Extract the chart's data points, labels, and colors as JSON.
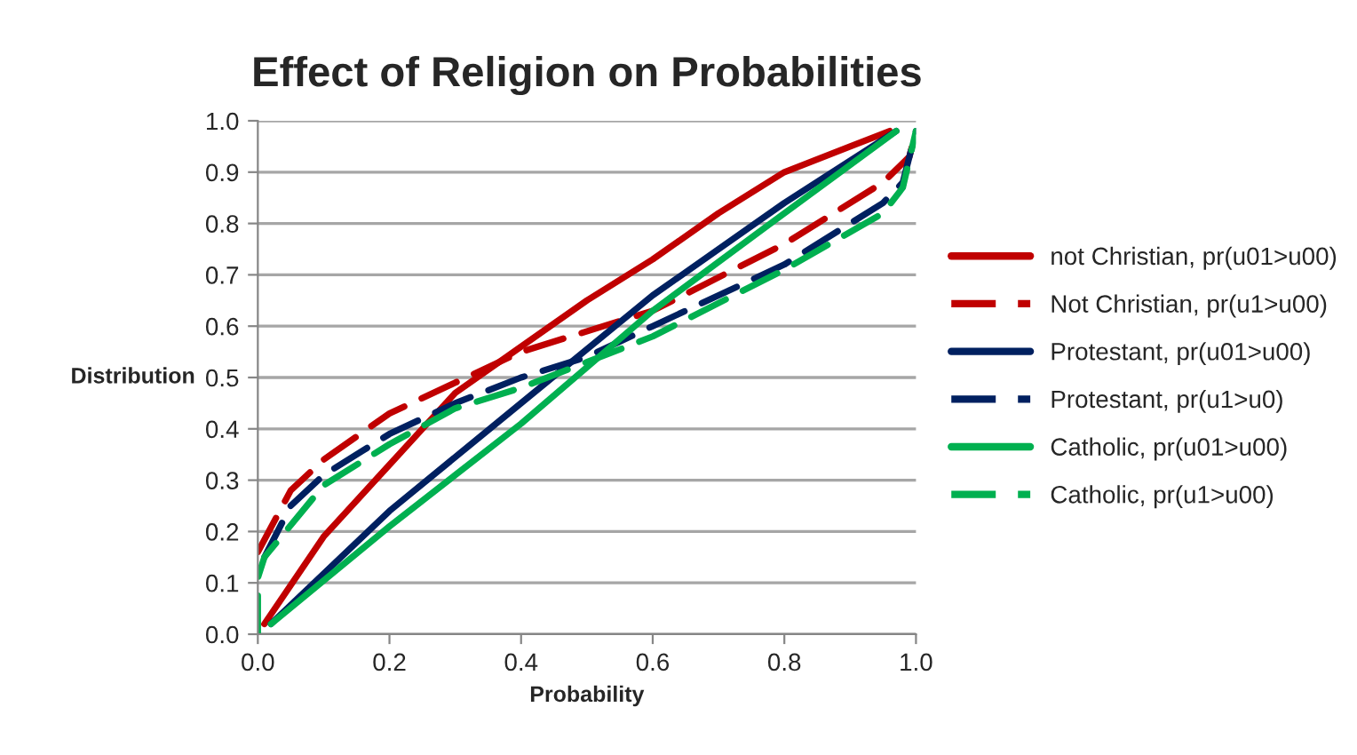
{
  "chart_data": {
    "type": "line",
    "title": "Effect of Religion on Probabilities",
    "xlabel": "Probability",
    "ylabel": "Distribution",
    "xlim": [
      0,
      1
    ],
    "ylim": [
      0,
      1
    ],
    "xticks": [
      {
        "value": 0,
        "label": "0.0"
      },
      {
        "value": 0.2,
        "label": "0.2"
      },
      {
        "value": 0.4,
        "label": "0.4"
      },
      {
        "value": 0.6,
        "label": "0.6"
      },
      {
        "value": 0.8,
        "label": "0.8"
      },
      {
        "value": 1,
        "label": "1.0"
      }
    ],
    "yticks": [
      {
        "value": 0,
        "label": "0.0"
      },
      {
        "value": 0.1,
        "label": "0.1"
      },
      {
        "value": 0.2,
        "label": "0.2"
      },
      {
        "value": 0.3,
        "label": "0.3"
      },
      {
        "value": 0.4,
        "label": "0.4"
      },
      {
        "value": 0.5,
        "label": "0.5"
      },
      {
        "value": 0.6,
        "label": "0.6"
      },
      {
        "value": 0.7,
        "label": "0.7"
      },
      {
        "value": 0.8,
        "label": "0.8"
      },
      {
        "value": 0.9,
        "label": "0.9"
      },
      {
        "value": 1,
        "label": "1.0"
      }
    ],
    "grid": "y",
    "legend": "right",
    "marker": "none",
    "series": [
      {
        "name": "not Christian, pr(u01>u00)",
        "color": "#c00000",
        "line_style": "solid",
        "x": [
          0.01,
          0.1,
          0.2,
          0.3,
          0.4,
          0.5,
          0.6,
          0.7,
          0.8,
          0.9,
          0.96
        ],
        "values": [
          0.02,
          0.19,
          0.33,
          0.47,
          0.56,
          0.65,
          0.73,
          0.82,
          0.9,
          0.95,
          0.98
        ]
      },
      {
        "name": "Not Christian, pr(u1>u00)",
        "color": "#c00000",
        "line_style": "dashed",
        "x": [
          0.0,
          0.05,
          0.1,
          0.2,
          0.3,
          0.4,
          0.6,
          0.8,
          0.95,
          0.99,
          1.0
        ],
        "values": [
          0.16,
          0.28,
          0.34,
          0.43,
          0.49,
          0.55,
          0.63,
          0.76,
          0.88,
          0.93,
          0.98
        ]
      },
      {
        "name": "Protestant, pr(u01>u00)",
        "color": "#002060",
        "line_style": "solid",
        "x": [
          0.02,
          0.2,
          0.4,
          0.6,
          0.8,
          0.97
        ],
        "values": [
          0.02,
          0.24,
          0.45,
          0.66,
          0.84,
          0.98
        ]
      },
      {
        "name": "Protestant, pr(u1>u0)",
        "color": "#002060",
        "line_style": "dashed",
        "x": [
          0.01,
          0.05,
          0.1,
          0.2,
          0.3,
          0.4,
          0.5,
          0.6,
          0.8,
          0.95,
          0.98,
          1.0
        ],
        "values": [
          0.15,
          0.25,
          0.31,
          0.39,
          0.45,
          0.5,
          0.54,
          0.6,
          0.72,
          0.84,
          0.88,
          0.98
        ]
      },
      {
        "name": "Catholic, pr(u01>u00)",
        "color": "#00b050",
        "line_style": "solid",
        "x": [
          0.02,
          0.2,
          0.4,
          0.5,
          0.6,
          0.8,
          0.97
        ],
        "values": [
          0.02,
          0.21,
          0.41,
          0.52,
          0.63,
          0.82,
          0.98
        ]
      },
      {
        "name": "Catholic, pr(u1>u00)",
        "color": "#00b050",
        "line_style": "dashed",
        "x": [
          0.0,
          0.0,
          0.01,
          0.1,
          0.2,
          0.3,
          0.4,
          0.5,
          0.6,
          0.8,
          0.95,
          0.98,
          1.0
        ],
        "values": [
          0.0,
          0.11,
          0.15,
          0.29,
          0.37,
          0.44,
          0.48,
          0.53,
          0.58,
          0.71,
          0.82,
          0.87,
          0.98
        ]
      }
    ]
  }
}
